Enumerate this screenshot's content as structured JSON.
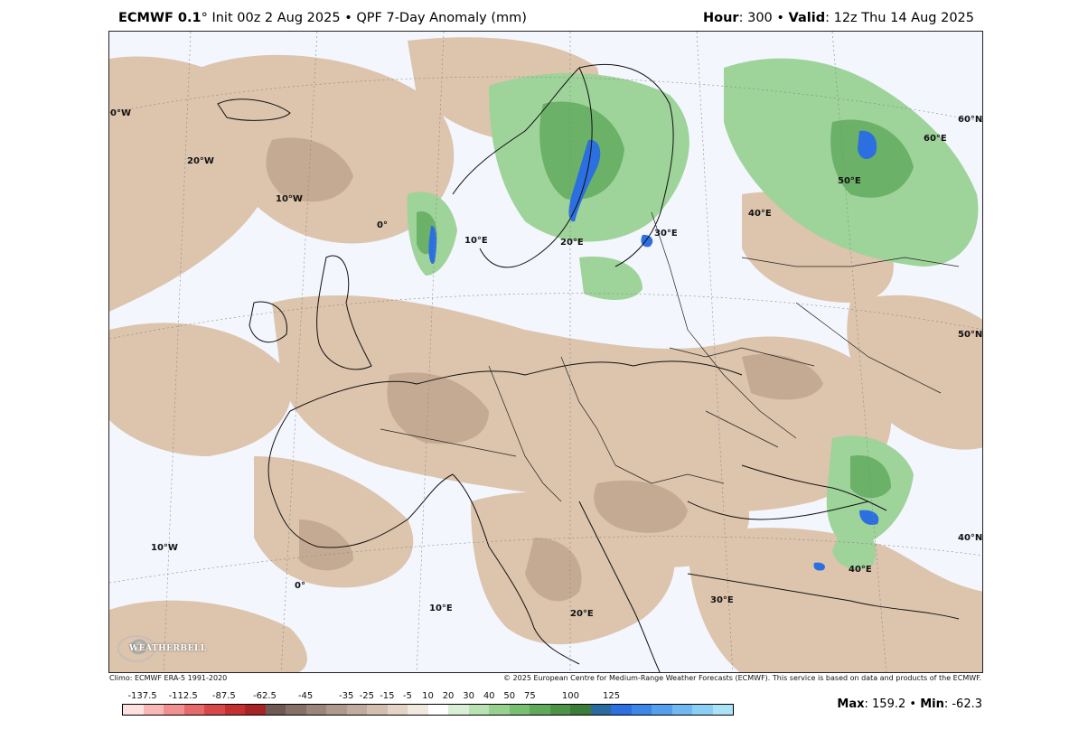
{
  "header": {
    "model": "ECMWF 0.1",
    "degree": "°",
    "init": " Init 00z 2 Aug 2025 • QPF 7-Day Anomaly (mm)",
    "hour_label": "Hour",
    "hour_value": ": 300 • ",
    "valid_label": "Valid",
    "valid_value": ": 12z Thu 14 Aug 2025"
  },
  "map": {
    "lat_labels": [
      "60°N",
      "50°N",
      "40°N"
    ],
    "lon_labels": [
      "0°W",
      "20°W",
      "10°W",
      "0°",
      "10°E",
      "20°E",
      "30°E",
      "40°E",
      "50°E",
      "60°E",
      "10°W",
      "0°",
      "10°E",
      "20°E",
      "30°E",
      "40°E"
    ],
    "logo_text": "WEATHERBELL"
  },
  "credits": {
    "climo": "Climo: ECMWF ERA-5 1991-2020",
    "copyright": "© 2025 European Centre for Medium-Range Weather Forecasts (ECMWF). This service is based on data and products of the ECMWF."
  },
  "colorbar": {
    "colors": [
      "#fde0e0",
      "#f8b8b8",
      "#f09090",
      "#e66a6a",
      "#d84848",
      "#c43030",
      "#a82424",
      "#6e5a52",
      "#857066",
      "#9a857a",
      "#ae998c",
      "#c0ac9e",
      "#d2bfb0",
      "#e3d4c6",
      "#f1e8df",
      "#ffffff",
      "#d9f0d6",
      "#b8e2b2",
      "#98d18f",
      "#78bf72",
      "#5ea95a",
      "#4c9347",
      "#3b7c38",
      "#2a6a9e",
      "#2b6fe0",
      "#3c86e8",
      "#54a0ee",
      "#6fb8f2",
      "#8ccff5",
      "#aae3f8"
    ],
    "ticks": [
      "-137.5",
      "-112.5",
      "-87.5",
      "-62.5",
      "-45",
      "-35",
      "-25",
      "-15",
      "-5",
      "10",
      "20",
      "30",
      "40",
      "50",
      "75",
      "100",
      "125"
    ]
  },
  "stats": {
    "max_label": "Max",
    "max_value": ": 159.2 • ",
    "min_label": "Min",
    "min_value": ": -62.3"
  }
}
